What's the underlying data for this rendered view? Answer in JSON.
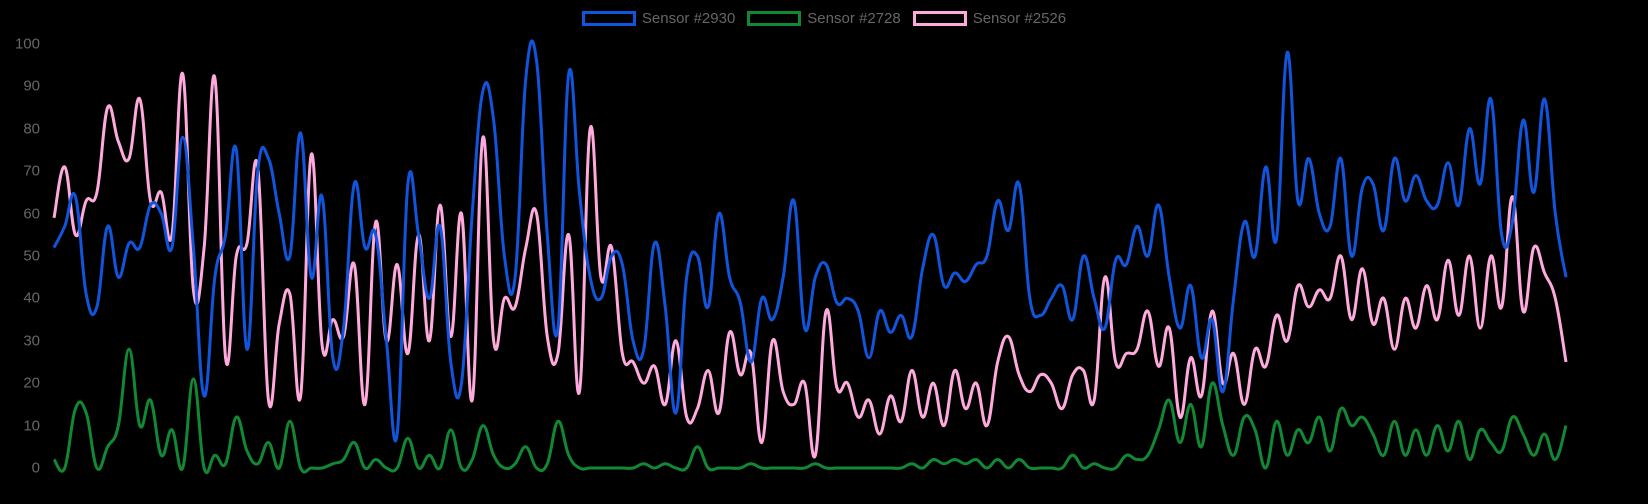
{
  "chart_data": {
    "type": "line",
    "title": "",
    "xlabel": "",
    "ylabel": "",
    "ylim": [
      0,
      100
    ],
    "yticks": [
      0,
      10,
      20,
      30,
      40,
      50,
      60,
      70,
      80,
      90,
      100
    ],
    "grid": false,
    "legend_position": "top",
    "series": [
      {
        "name": "Sensor #2930",
        "color": "#1155dd",
        "values": [
          52,
          57,
          64,
          41,
          38,
          57,
          45,
          53,
          52,
          62,
          60,
          52,
          78,
          52,
          17,
          45,
          55,
          75,
          28,
          70,
          73,
          60,
          50,
          79,
          45,
          64,
          26,
          33,
          67,
          52,
          55,
          30,
          8,
          67,
          55,
          40,
          57,
          25,
          20,
          60,
          89,
          82,
          50,
          45,
          92,
          96,
          55,
          33,
          93,
          65,
          45,
          40,
          50,
          48,
          30,
          28,
          53,
          38,
          13,
          45,
          50,
          38,
          60,
          45,
          39,
          25,
          40,
          35,
          45,
          63,
          33,
          45,
          48,
          39,
          40,
          37,
          26,
          37,
          32,
          36,
          31,
          47,
          55,
          43,
          46,
          44,
          48,
          50,
          63,
          56,
          67,
          40,
          36,
          40,
          43,
          35,
          50,
          40,
          33,
          49,
          48,
          57,
          50,
          62,
          45,
          33,
          43,
          26,
          35,
          18,
          40,
          58,
          50,
          71,
          54,
          98,
          63,
          73,
          60,
          57,
          73,
          50,
          66,
          67,
          56,
          73,
          63,
          69,
          63,
          62,
          72,
          62,
          80,
          67,
          87,
          55,
          58,
          82,
          65,
          87,
          60,
          45
        ]
      },
      {
        "name": "Sensor #2728",
        "color": "#118833",
        "values": [
          2,
          0,
          14,
          13,
          0,
          5,
          10,
          28,
          10,
          16,
          3,
          9,
          0,
          21,
          0,
          3,
          1,
          12,
          4,
          1,
          6,
          0,
          11,
          0,
          0,
          0,
          1,
          2,
          6,
          0,
          2,
          0,
          0,
          7,
          0,
          3,
          0,
          9,
          0,
          2,
          10,
          3,
          0,
          1,
          5,
          0,
          1,
          11,
          3,
          0,
          0,
          0,
          0,
          0,
          0,
          1,
          0,
          1,
          0,
          0,
          5,
          0,
          0,
          0,
          0,
          1,
          0,
          0,
          0,
          0,
          0,
          1,
          0,
          0,
          0,
          0,
          0,
          0,
          0,
          0,
          1,
          0,
          2,
          1,
          2,
          1,
          2,
          0,
          2,
          0,
          2,
          0,
          0,
          0,
          0,
          3,
          0,
          1,
          0,
          0,
          3,
          2,
          3,
          9,
          16,
          6,
          15,
          5,
          20,
          10,
          3,
          12,
          9,
          0,
          11,
          3,
          9,
          6,
          12,
          4,
          14,
          10,
          12,
          8,
          3,
          11,
          3,
          9,
          3,
          10,
          4,
          11,
          2,
          9,
          6,
          4,
          12,
          8,
          3,
          8,
          2,
          10
        ]
      },
      {
        "name": "Sensor #2526",
        "color": "#ffaadd",
        "values": [
          59,
          71,
          55,
          63,
          65,
          85,
          77,
          73,
          87,
          63,
          65,
          55,
          93,
          42,
          52,
          92,
          26,
          50,
          53,
          71,
          16,
          34,
          41,
          17,
          74,
          29,
          35,
          31,
          48,
          15,
          58,
          30,
          48,
          27,
          55,
          30,
          62,
          31,
          60,
          16,
          78,
          30,
          40,
          38,
          52,
          60,
          31,
          27,
          55,
          18,
          80,
          45,
          52,
          27,
          25,
          20,
          24,
          15,
          30,
          12,
          14,
          23,
          13,
          32,
          22,
          27,
          6,
          30,
          18,
          15,
          20,
          3,
          37,
          19,
          20,
          12,
          16,
          8,
          17,
          11,
          23,
          12,
          20,
          10,
          23,
          14,
          20,
          10,
          25,
          31,
          22,
          18,
          22,
          20,
          14,
          22,
          23,
          16,
          45,
          25,
          27,
          28,
          37,
          24,
          33,
          12,
          26,
          17,
          37,
          20,
          27,
          15,
          28,
          24,
          36,
          30,
          43,
          38,
          42,
          40,
          50,
          35,
          47,
          34,
          40,
          28,
          40,
          33,
          43,
          35,
          49,
          36,
          50,
          33,
          50,
          38,
          64,
          37,
          52,
          46,
          40,
          25
        ]
      }
    ]
  },
  "legend": {
    "items": [
      {
        "label": "Sensor #2930",
        "color": "#1155dd"
      },
      {
        "label": "Sensor #2728",
        "color": "#118833"
      },
      {
        "label": "Sensor #2526",
        "color": "#ffaadd"
      }
    ]
  }
}
